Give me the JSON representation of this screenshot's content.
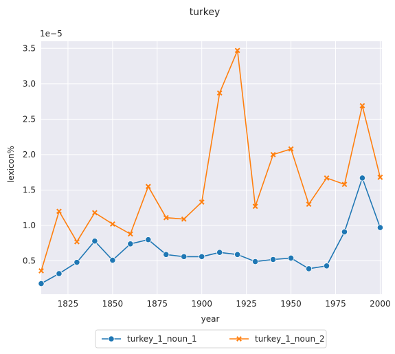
{
  "chart_data": {
    "type": "line",
    "title": "turkey",
    "xlabel": "year",
    "ylabel": "lexicon%",
    "y_offset_label": "1e−5",
    "xlim": [
      1810,
      2001
    ],
    "ylim": [
      0.03,
      3.6
    ],
    "xticks": [
      1825,
      1850,
      1875,
      1900,
      1925,
      1950,
      1975,
      2000
    ],
    "yticks": [
      0.5,
      1.0,
      1.5,
      2.0,
      2.5,
      3.0,
      3.5
    ],
    "ytick_labels": [
      "0.5",
      "1.0",
      "1.5",
      "2.0",
      "2.5",
      "3.0",
      "3.5"
    ],
    "grid": true,
    "legend_position": "bottom-center",
    "x": [
      1810,
      1820,
      1830,
      1840,
      1850,
      1860,
      1870,
      1880,
      1890,
      1900,
      1910,
      1920,
      1930,
      1940,
      1950,
      1960,
      1970,
      1980,
      1990,
      2000
    ],
    "series": [
      {
        "name": "turkey_1_noun_1",
        "color": "#1f77b4",
        "marker": "circle",
        "values": [
          0.18,
          0.32,
          0.48,
          0.78,
          0.51,
          0.74,
          0.8,
          0.59,
          0.56,
          0.56,
          0.62,
          0.59,
          0.49,
          0.52,
          0.54,
          0.39,
          0.43,
          0.91,
          1.67,
          0.97
        ]
      },
      {
        "name": "turkey_1_noun_2",
        "color": "#ff7f0e",
        "marker": "x",
        "values": [
          0.36,
          1.2,
          0.77,
          1.18,
          1.02,
          0.88,
          1.55,
          1.11,
          1.09,
          1.33,
          2.87,
          3.47,
          1.27,
          2.0,
          2.08,
          1.3,
          1.67,
          1.58,
          2.69,
          1.68
        ]
      }
    ]
  },
  "colors": {
    "plot_background": "#eaeaf2",
    "grid": "#ffffff",
    "text": "#262626"
  }
}
